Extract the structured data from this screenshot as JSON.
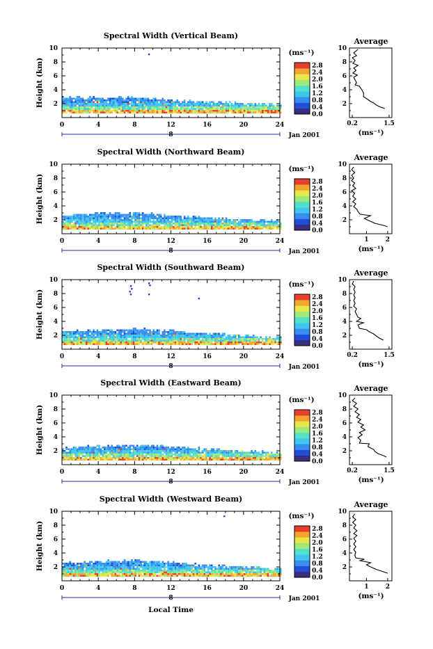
{
  "figure": {
    "xlabel": "Local Time",
    "date_label": "Jan 2001",
    "ylabel": "Height (km)",
    "unit_label": "(ms⁻¹)",
    "avg_title": "Average",
    "avg_unit_label": "(ms⁻¹)",
    "day_label": "8"
  },
  "colors": {
    "scale": [
      "#3a2f7e",
      "#1f4fd8",
      "#3a8df0",
      "#3fc6ee",
      "#52e0c9",
      "#9cea7a",
      "#e7e64a",
      "#f3a532",
      "#e6402b"
    ]
  },
  "chart_data": [
    {
      "type": "heatmap",
      "title": "Spectral Width (Vertical Beam)",
      "x_range": [
        0,
        24
      ],
      "x_ticks": [
        0,
        4,
        8,
        12,
        16,
        20,
        24
      ],
      "y_range": [
        0,
        10
      ],
      "y_ticks": [
        2,
        4,
        6,
        8,
        10
      ],
      "colorbar_ticks": [
        "2.8",
        "2.4",
        "2.0",
        "1.6",
        "1.2",
        "0.8",
        "0.4",
        "0.0"
      ],
      "colorbar_range": [
        0,
        2.8
      ],
      "echo_top_km": [
        [
          0,
          2.8
        ],
        [
          4,
          2.7
        ],
        [
          8,
          2.8
        ],
        [
          10,
          2.6
        ],
        [
          14,
          2.2
        ],
        [
          18,
          2.0
        ],
        [
          22,
          1.8
        ],
        [
          24,
          1.6
        ]
      ],
      "outliers": [
        [
          9.5,
          9.2
        ]
      ],
      "average": {
        "x_ticks": [
          "0.2",
          "1.5"
        ],
        "x_range": [
          0.1,
          1.6
        ],
        "profile": [
          [
            0.4,
            9.8
          ],
          [
            0.25,
            9.3
          ],
          [
            0.35,
            8.9
          ],
          [
            0.2,
            8.6
          ],
          [
            0.3,
            8.2
          ],
          [
            0.22,
            7.8
          ],
          [
            0.4,
            7.5
          ],
          [
            0.25,
            7.1
          ],
          [
            0.33,
            6.8
          ],
          [
            0.22,
            6.4
          ],
          [
            0.38,
            6.1
          ],
          [
            0.25,
            5.8
          ],
          [
            0.3,
            5.4
          ],
          [
            0.35,
            5.0
          ],
          [
            0.3,
            4.7
          ],
          [
            0.45,
            4.5
          ],
          [
            0.5,
            4.2
          ],
          [
            0.55,
            3.9
          ],
          [
            0.6,
            3.5
          ],
          [
            0.6,
            3.0
          ],
          [
            0.75,
            2.6
          ],
          [
            0.85,
            2.3
          ],
          [
            0.95,
            2.1
          ],
          [
            1.05,
            1.8
          ],
          [
            1.2,
            1.5
          ],
          [
            1.35,
            1.3
          ]
        ]
      }
    },
    {
      "type": "heatmap",
      "title": "Spectral Width (Northward Beam)",
      "x_range": [
        0,
        24
      ],
      "x_ticks": [
        0,
        4,
        8,
        12,
        16,
        20,
        24
      ],
      "y_range": [
        0,
        10
      ],
      "y_ticks": [
        2,
        4,
        6,
        8,
        10
      ],
      "colorbar_ticks": [
        "2.8",
        "2.4",
        "2.0",
        "1.6",
        "1.2",
        "0.8",
        "0.4",
        "0.0"
      ],
      "colorbar_range": [
        0,
        2.8
      ],
      "echo_top_km": [
        [
          0,
          2.5
        ],
        [
          4,
          2.8
        ],
        [
          8,
          2.9
        ],
        [
          10,
          2.7
        ],
        [
          14,
          2.3
        ],
        [
          18,
          2.0
        ],
        [
          22,
          1.8
        ],
        [
          24,
          1.7
        ]
      ],
      "outliers": [],
      "average": {
        "x_ticks": [
          "1",
          "2"
        ],
        "x_range": [
          0.2,
          2.2
        ],
        "profile": [
          [
            0.4,
            9.6
          ],
          [
            0.3,
            9.2
          ],
          [
            0.45,
            8.8
          ],
          [
            0.3,
            8.4
          ],
          [
            0.4,
            8.0
          ],
          [
            0.3,
            7.6
          ],
          [
            0.45,
            7.3
          ],
          [
            0.35,
            6.9
          ],
          [
            0.5,
            6.5
          ],
          [
            0.3,
            6.2
          ],
          [
            0.45,
            5.8
          ],
          [
            0.35,
            5.4
          ],
          [
            0.5,
            5.0
          ],
          [
            0.35,
            4.6
          ],
          [
            0.5,
            4.3
          ],
          [
            0.4,
            3.9
          ],
          [
            0.55,
            3.5
          ],
          [
            0.6,
            3.2
          ],
          [
            0.7,
            2.8
          ],
          [
            1.2,
            2.6
          ],
          [
            0.9,
            2.2
          ],
          [
            1.1,
            1.9
          ],
          [
            1.4,
            1.5
          ],
          [
            1.8,
            1.2
          ],
          [
            2.0,
            1.0
          ]
        ]
      }
    },
    {
      "type": "heatmap",
      "title": "Spectral Width (Southward Beam)",
      "x_range": [
        0,
        24
      ],
      "x_ticks": [
        0,
        4,
        8,
        12,
        16,
        20,
        24
      ],
      "y_range": [
        0,
        10
      ],
      "y_ticks": [
        2,
        4,
        6,
        8,
        10
      ],
      "colorbar_ticks": [
        "2.8",
        "2.4",
        "2.0",
        "1.6",
        "1.2",
        "0.8",
        "0.4",
        "0.0"
      ],
      "colorbar_range": [
        0,
        2.8
      ],
      "echo_top_km": [
        [
          0,
          2.4
        ],
        [
          4,
          2.6
        ],
        [
          8,
          2.8
        ],
        [
          10,
          2.7
        ],
        [
          14,
          2.3
        ],
        [
          18,
          2.0
        ],
        [
          22,
          1.7
        ],
        [
          24,
          1.5
        ]
      ],
      "outliers": [
        [
          7.5,
          9.2
        ],
        [
          7.6,
          8.8
        ],
        [
          7.4,
          8.4
        ],
        [
          7.5,
          8.0
        ],
        [
          9.5,
          9.6
        ],
        [
          9.6,
          9.3
        ],
        [
          9.5,
          8.0
        ],
        [
          15,
          7.4
        ]
      ],
      "average": {
        "x_ticks": [
          "0.2",
          "1.5"
        ],
        "x_range": [
          0.1,
          1.6
        ],
        "profile": [
          [
            0.25,
            9.8
          ],
          [
            0.2,
            9.4
          ],
          [
            0.3,
            9.0
          ],
          [
            0.25,
            8.6
          ],
          [
            0.3,
            8.2
          ],
          [
            0.25,
            7.8
          ],
          [
            0.3,
            7.4
          ],
          [
            0.25,
            7.0
          ],
          [
            0.3,
            6.6
          ],
          [
            0.25,
            6.2
          ],
          [
            0.35,
            5.8
          ],
          [
            0.3,
            5.4
          ],
          [
            0.35,
            5.0
          ],
          [
            0.4,
            4.6
          ],
          [
            0.5,
            4.4
          ],
          [
            0.35,
            4.0
          ],
          [
            0.6,
            3.8
          ],
          [
            0.4,
            3.5
          ],
          [
            0.45,
            3.0
          ],
          [
            0.7,
            2.8
          ],
          [
            0.8,
            2.5
          ],
          [
            0.95,
            2.2
          ],
          [
            1.05,
            1.9
          ],
          [
            1.15,
            1.6
          ],
          [
            1.3,
            1.3
          ]
        ]
      }
    },
    {
      "type": "heatmap",
      "title": "Spectral Width (Eastward Beam)",
      "x_range": [
        0,
        24
      ],
      "x_ticks": [
        0,
        4,
        8,
        12,
        16,
        20,
        24
      ],
      "y_range": [
        0,
        10
      ],
      "y_ticks": [
        2,
        4,
        6,
        8,
        10
      ],
      "colorbar_ticks": [
        "2.8",
        "2.4",
        "2.0",
        "1.6",
        "1.2",
        "0.8",
        "0.4",
        "0.0"
      ],
      "colorbar_range": [
        0,
        2.8
      ],
      "echo_top_km": [
        [
          0,
          2.2
        ],
        [
          4,
          2.6
        ],
        [
          8,
          2.7
        ],
        [
          10,
          2.6
        ],
        [
          14,
          2.3
        ],
        [
          18,
          2.0
        ],
        [
          22,
          1.7
        ],
        [
          24,
          1.4
        ]
      ],
      "outliers": [],
      "average": {
        "x_ticks": [
          "0.2",
          "1.5"
        ],
        "x_range": [
          0.1,
          1.6
        ],
        "profile": [
          [
            0.3,
            9.6
          ],
          [
            0.2,
            9.2
          ],
          [
            0.35,
            8.8
          ],
          [
            0.25,
            8.4
          ],
          [
            0.4,
            8.0
          ],
          [
            0.3,
            7.6
          ],
          [
            0.45,
            7.2
          ],
          [
            0.35,
            6.8
          ],
          [
            0.5,
            6.5
          ],
          [
            0.4,
            6.1
          ],
          [
            0.6,
            5.7
          ],
          [
            0.5,
            5.4
          ],
          [
            0.65,
            5.0
          ],
          [
            0.45,
            4.6
          ],
          [
            0.55,
            4.3
          ],
          [
            0.4,
            3.9
          ],
          [
            0.5,
            3.5
          ],
          [
            0.45,
            3.1
          ],
          [
            0.8,
            3.0
          ],
          [
            0.75,
            2.6
          ],
          [
            0.95,
            2.2
          ],
          [
            1.0,
            1.9
          ],
          [
            1.1,
            1.6
          ],
          [
            1.3,
            1.3
          ],
          [
            1.4,
            1.1
          ]
        ]
      }
    },
    {
      "type": "heatmap",
      "title": "Spectral Width (Westward Beam)",
      "x_range": [
        0,
        24
      ],
      "x_ticks": [
        0,
        4,
        8,
        12,
        16,
        20,
        24
      ],
      "y_range": [
        0,
        10
      ],
      "y_ticks": [
        2,
        4,
        6,
        8,
        10
      ],
      "colorbar_ticks": [
        "2.8",
        "2.4",
        "2.0",
        "1.6",
        "1.2",
        "0.8",
        "0.4",
        "0.0"
      ],
      "colorbar_range": [
        0,
        2.8
      ],
      "echo_top_km": [
        [
          0,
          2.4
        ],
        [
          4,
          2.7
        ],
        [
          8,
          2.8
        ],
        [
          10,
          2.7
        ],
        [
          14,
          2.3
        ],
        [
          18,
          2.0
        ],
        [
          22,
          1.8
        ],
        [
          24,
          1.6
        ]
      ],
      "outliers": [
        [
          17.8,
          9.4
        ]
      ],
      "average": {
        "x_ticks": [
          "1",
          "2"
        ],
        "x_range": [
          0.2,
          2.2
        ],
        "profile": [
          [
            0.45,
            9.6
          ],
          [
            0.35,
            9.2
          ],
          [
            0.5,
            8.8
          ],
          [
            0.35,
            8.4
          ],
          [
            0.5,
            8.0
          ],
          [
            0.4,
            7.6
          ],
          [
            0.55,
            7.2
          ],
          [
            0.4,
            6.8
          ],
          [
            0.55,
            6.5
          ],
          [
            0.4,
            6.1
          ],
          [
            0.5,
            5.7
          ],
          [
            0.4,
            5.3
          ],
          [
            0.5,
            4.9
          ],
          [
            0.4,
            4.5
          ],
          [
            0.5,
            4.1
          ],
          [
            0.45,
            3.7
          ],
          [
            0.5,
            3.3
          ],
          [
            0.9,
            3.1
          ],
          [
            0.7,
            2.9
          ],
          [
            1.2,
            2.6
          ],
          [
            1.0,
            2.3
          ],
          [
            1.2,
            2.0
          ],
          [
            1.5,
            1.6
          ],
          [
            1.8,
            1.3
          ],
          [
            2.0,
            1.1
          ]
        ]
      }
    }
  ]
}
